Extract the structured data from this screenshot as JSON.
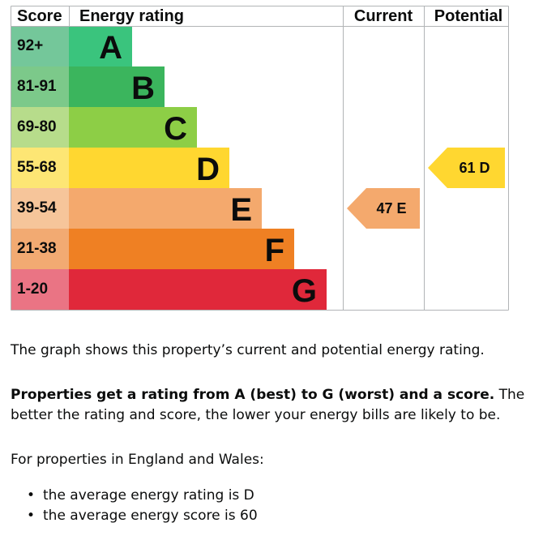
{
  "chart_data": {
    "type": "bar",
    "headers": {
      "score": "Score",
      "rating": "Energy rating",
      "current": "Current",
      "potential": "Potential"
    },
    "bands": [
      {
        "score": "92+",
        "letter": "A",
        "band_color": "#3ac47d",
        "score_color": "#74c79a",
        "letter_color": "#0b0c0c"
      },
      {
        "score": "81-91",
        "letter": "B",
        "band_color": "#3bb55d",
        "score_color": "#7cc98a",
        "letter_color": "#0b0c0c"
      },
      {
        "score": "69-80",
        "letter": "C",
        "band_color": "#8dce46",
        "score_color": "#b7dc8b",
        "letter_color": "#0b0c0c"
      },
      {
        "score": "55-68",
        "letter": "D",
        "band_color": "#ffd730",
        "score_color": "#fde674",
        "letter_color": "#0b0c0c"
      },
      {
        "score": "39-54",
        "letter": "E",
        "band_color": "#f4a96d",
        "score_color": "#f6c59a",
        "letter_color": "#0b0c0c"
      },
      {
        "score": "21-38",
        "letter": "F",
        "band_color": "#ef8023",
        "score_color": "#f2aa72",
        "letter_color": "#0b0c0c"
      },
      {
        "score": "1-20",
        "letter": "G",
        "band_color": "#e0283a",
        "score_color": "#ea7484",
        "letter_color": "#0b0c0c"
      }
    ],
    "current": {
      "score": 47,
      "letter": "E",
      "color": "#f4a96d",
      "label": "47  E"
    },
    "potential": {
      "score": 61,
      "letter": "D",
      "color": "#ffd730",
      "label": "61  D"
    }
  },
  "text": {
    "intro": "The graph shows this property’s current and potential energy rating.",
    "explainer_bold": "Properties get a rating from A (best) to G (worst) and a score.",
    "explainer_rest": " The better the rating and score, the lower your energy bills are likely to be.",
    "region_intro": "For properties in England and Wales:",
    "averages": [
      "the average energy rating is D",
      "the average energy score is 60"
    ],
    "bullet": "•"
  },
  "colors": {
    "grid": "#b1b4b6",
    "text": "#0b0c0c"
  }
}
